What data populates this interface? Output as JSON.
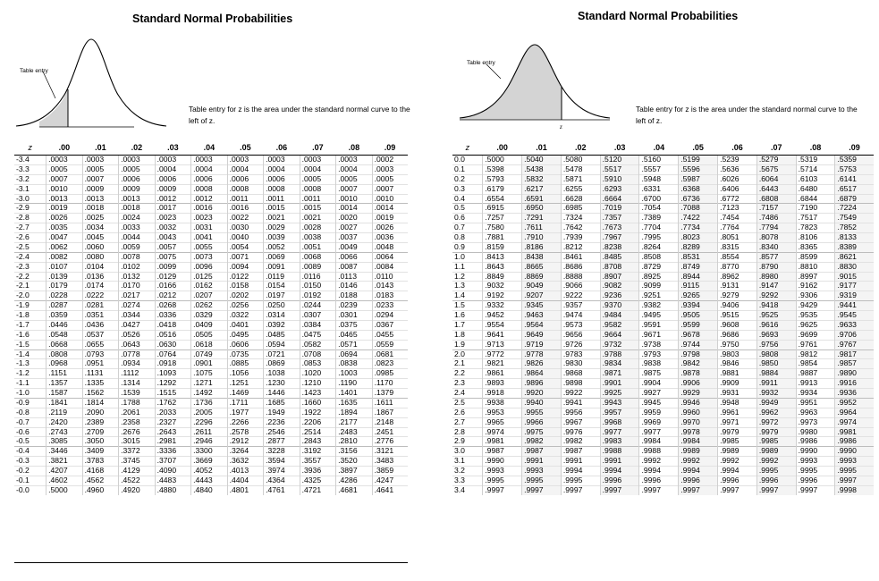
{
  "left": {
    "title": "Standard Normal Probabilities",
    "table_entry_label": "Table entry",
    "z_label": "z",
    "caption": "Table entry for z is the area under the standard normal curve to the left of z.",
    "headers": [
      "z",
      ".00",
      ".01",
      ".02",
      ".03",
      ".04",
      ".05",
      ".06",
      ".07",
      ".08",
      ".09"
    ],
    "rows": [
      [
        "-3.4",
        ".0003",
        ".0003",
        ".0003",
        ".0003",
        ".0003",
        ".0003",
        ".0003",
        ".0003",
        ".0003",
        ".0002"
      ],
      [
        "-3.3",
        ".0005",
        ".0005",
        ".0005",
        ".0004",
        ".0004",
        ".0004",
        ".0004",
        ".0004",
        ".0004",
        ".0003"
      ],
      [
        "-3.2",
        ".0007",
        ".0007",
        ".0006",
        ".0006",
        ".0006",
        ".0006",
        ".0006",
        ".0005",
        ".0005",
        ".0005"
      ],
      [
        "-3.1",
        ".0010",
        ".0009",
        ".0009",
        ".0009",
        ".0008",
        ".0008",
        ".0008",
        ".0008",
        ".0007",
        ".0007"
      ],
      [
        "-3.0",
        ".0013",
        ".0013",
        ".0013",
        ".0012",
        ".0012",
        ".0011",
        ".0011",
        ".0011",
        ".0010",
        ".0010"
      ],
      [
        "-2.9",
        ".0019",
        ".0018",
        ".0018",
        ".0017",
        ".0016",
        ".0016",
        ".0015",
        ".0015",
        ".0014",
        ".0014"
      ],
      [
        "-2.8",
        ".0026",
        ".0025",
        ".0024",
        ".0023",
        ".0023",
        ".0022",
        ".0021",
        ".0021",
        ".0020",
        ".0019"
      ],
      [
        "-2.7",
        ".0035",
        ".0034",
        ".0033",
        ".0032",
        ".0031",
        ".0030",
        ".0029",
        ".0028",
        ".0027",
        ".0026"
      ],
      [
        "-2.6",
        ".0047",
        ".0045",
        ".0044",
        ".0043",
        ".0041",
        ".0040",
        ".0039",
        ".0038",
        ".0037",
        ".0036"
      ],
      [
        "-2.5",
        ".0062",
        ".0060",
        ".0059",
        ".0057",
        ".0055",
        ".0054",
        ".0052",
        ".0051",
        ".0049",
        ".0048"
      ],
      [
        "-2.4",
        ".0082",
        ".0080",
        ".0078",
        ".0075",
        ".0073",
        ".0071",
        ".0069",
        ".0068",
        ".0066",
        ".0064"
      ],
      [
        "-2.3",
        ".0107",
        ".0104",
        ".0102",
        ".0099",
        ".0096",
        ".0094",
        ".0091",
        ".0089",
        ".0087",
        ".0084"
      ],
      [
        "-2.2",
        ".0139",
        ".0136",
        ".0132",
        ".0129",
        ".0125",
        ".0122",
        ".0119",
        ".0116",
        ".0113",
        ".0110"
      ],
      [
        "-2.1",
        ".0179",
        ".0174",
        ".0170",
        ".0166",
        ".0162",
        ".0158",
        ".0154",
        ".0150",
        ".0146",
        ".0143"
      ],
      [
        "-2.0",
        ".0228",
        ".0222",
        ".0217",
        ".0212",
        ".0207",
        ".0202",
        ".0197",
        ".0192",
        ".0188",
        ".0183"
      ],
      [
        "-1.9",
        ".0287",
        ".0281",
        ".0274",
        ".0268",
        ".0262",
        ".0256",
        ".0250",
        ".0244",
        ".0239",
        ".0233"
      ],
      [
        "-1.8",
        ".0359",
        ".0351",
        ".0344",
        ".0336",
        ".0329",
        ".0322",
        ".0314",
        ".0307",
        ".0301",
        ".0294"
      ],
      [
        "-1.7",
        ".0446",
        ".0436",
        ".0427",
        ".0418",
        ".0409",
        ".0401",
        ".0392",
        ".0384",
        ".0375",
        ".0367"
      ],
      [
        "-1.6",
        ".0548",
        ".0537",
        ".0526",
        ".0516",
        ".0505",
        ".0495",
        ".0485",
        ".0475",
        ".0465",
        ".0455"
      ],
      [
        "-1.5",
        ".0668",
        ".0655",
        ".0643",
        ".0630",
        ".0618",
        ".0606",
        ".0594",
        ".0582",
        ".0571",
        ".0559"
      ],
      [
        "-1.4",
        ".0808",
        ".0793",
        ".0778",
        ".0764",
        ".0749",
        ".0735",
        ".0721",
        ".0708",
        ".0694",
        ".0681"
      ],
      [
        "-1.3",
        ".0968",
        ".0951",
        ".0934",
        ".0918",
        ".0901",
        ".0885",
        ".0869",
        ".0853",
        ".0838",
        ".0823"
      ],
      [
        "-1.2",
        ".1151",
        ".1131",
        ".1112",
        ".1093",
        ".1075",
        ".1056",
        ".1038",
        ".1020",
        ".1003",
        ".0985"
      ],
      [
        "-1.1",
        ".1357",
        ".1335",
        ".1314",
        ".1292",
        ".1271",
        ".1251",
        ".1230",
        ".1210",
        ".1190",
        ".1170"
      ],
      [
        "-1.0",
        ".1587",
        ".1562",
        ".1539",
        ".1515",
        ".1492",
        ".1469",
        ".1446",
        ".1423",
        ".1401",
        ".1379"
      ],
      [
        "-0.9",
        ".1841",
        ".1814",
        ".1788",
        ".1762",
        ".1736",
        ".1711",
        ".1685",
        ".1660",
        ".1635",
        ".1611"
      ],
      [
        "-0.8",
        ".2119",
        ".2090",
        ".2061",
        ".2033",
        ".2005",
        ".1977",
        ".1949",
        ".1922",
        ".1894",
        ".1867"
      ],
      [
        "-0.7",
        ".2420",
        ".2389",
        ".2358",
        ".2327",
        ".2296",
        ".2266",
        ".2236",
        ".2206",
        ".2177",
        ".2148"
      ],
      [
        "-0.6",
        ".2743",
        ".2709",
        ".2676",
        ".2643",
        ".2611",
        ".2578",
        ".2546",
        ".2514",
        ".2483",
        ".2451"
      ],
      [
        "-0.5",
        ".3085",
        ".3050",
        ".3015",
        ".2981",
        ".2946",
        ".2912",
        ".2877",
        ".2843",
        ".2810",
        ".2776"
      ],
      [
        "-0.4",
        ".3446",
        ".3409",
        ".3372",
        ".3336",
        ".3300",
        ".3264",
        ".3228",
        ".3192",
        ".3156",
        ".3121"
      ],
      [
        "-0.3",
        ".3821",
        ".3783",
        ".3745",
        ".3707",
        ".3669",
        ".3632",
        ".3594",
        ".3557",
        ".3520",
        ".3483"
      ],
      [
        "-0.2",
        ".4207",
        ".4168",
        ".4129",
        ".4090",
        ".4052",
        ".4013",
        ".3974",
        ".3936",
        ".3897",
        ".3859"
      ],
      [
        "-0.1",
        ".4602",
        ".4562",
        ".4522",
        ".4483",
        ".4443",
        ".4404",
        ".4364",
        ".4325",
        ".4286",
        ".4247"
      ],
      [
        "-0.0",
        ".5000",
        ".4960",
        ".4920",
        ".4880",
        ".4840",
        ".4801",
        ".4761",
        ".4721",
        ".4681",
        ".4641"
      ]
    ]
  },
  "right": {
    "title": "Standard Normal Probabilities",
    "table_entry_label": "Table entry",
    "z_label": "z",
    "caption": "Table entry for z is the area under the standard normal curve to the left of z.",
    "headers": [
      "z",
      ".00",
      ".01",
      ".02",
      ".03",
      ".04",
      ".05",
      ".06",
      ".07",
      ".08",
      ".09"
    ],
    "rows": [
      [
        "0.0",
        ".5000",
        ".5040",
        ".5080",
        ".5120",
        ".5160",
        ".5199",
        ".5239",
        ".5279",
        ".5319",
        ".5359"
      ],
      [
        "0.1",
        ".5398",
        ".5438",
        ".5478",
        ".5517",
        ".5557",
        ".5596",
        ".5636",
        ".5675",
        ".5714",
        ".5753"
      ],
      [
        "0.2",
        ".5793",
        ".5832",
        ".5871",
        ".5910",
        ".5948",
        ".5987",
        ".6026",
        ".6064",
        ".6103",
        ".6141"
      ],
      [
        "0.3",
        ".6179",
        ".6217",
        ".6255",
        ".6293",
        ".6331",
        ".6368",
        ".6406",
        ".6443",
        ".6480",
        ".6517"
      ],
      [
        "0.4",
        ".6554",
        ".6591",
        ".6628",
        ".6664",
        ".6700",
        ".6736",
        ".6772",
        ".6808",
        ".6844",
        ".6879"
      ],
      [
        "0.5",
        ".6915",
        ".6950",
        ".6985",
        ".7019",
        ".7054",
        ".7088",
        ".7123",
        ".7157",
        ".7190",
        ".7224"
      ],
      [
        "0.6",
        ".7257",
        ".7291",
        ".7324",
        ".7357",
        ".7389",
        ".7422",
        ".7454",
        ".7486",
        ".7517",
        ".7549"
      ],
      [
        "0.7",
        ".7580",
        ".7611",
        ".7642",
        ".7673",
        ".7704",
        ".7734",
        ".7764",
        ".7794",
        ".7823",
        ".7852"
      ],
      [
        "0.8",
        ".7881",
        ".7910",
        ".7939",
        ".7967",
        ".7995",
        ".8023",
        ".8051",
        ".8078",
        ".8106",
        ".8133"
      ],
      [
        "0.9",
        ".8159",
        ".8186",
        ".8212",
        ".8238",
        ".8264",
        ".8289",
        ".8315",
        ".8340",
        ".8365",
        ".8389"
      ],
      [
        "1.0",
        ".8413",
        ".8438",
        ".8461",
        ".8485",
        ".8508",
        ".8531",
        ".8554",
        ".8577",
        ".8599",
        ".8621"
      ],
      [
        "1.1",
        ".8643",
        ".8665",
        ".8686",
        ".8708",
        ".8729",
        ".8749",
        ".8770",
        ".8790",
        ".8810",
        ".8830"
      ],
      [
        "1.2",
        ".8849",
        ".8869",
        ".8888",
        ".8907",
        ".8925",
        ".8944",
        ".8962",
        ".8980",
        ".8997",
        ".9015"
      ],
      [
        "1.3",
        ".9032",
        ".9049",
        ".9066",
        ".9082",
        ".9099",
        ".9115",
        ".9131",
        ".9147",
        ".9162",
        ".9177"
      ],
      [
        "1.4",
        ".9192",
        ".9207",
        ".9222",
        ".9236",
        ".9251",
        ".9265",
        ".9279",
        ".9292",
        ".9306",
        ".9319"
      ],
      [
        "1.5",
        ".9332",
        ".9345",
        ".9357",
        ".9370",
        ".9382",
        ".9394",
        ".9406",
        ".9418",
        ".9429",
        ".9441"
      ],
      [
        "1.6",
        ".9452",
        ".9463",
        ".9474",
        ".9484",
        ".9495",
        ".9505",
        ".9515",
        ".9525",
        ".9535",
        ".9545"
      ],
      [
        "1.7",
        ".9554",
        ".9564",
        ".9573",
        ".9582",
        ".9591",
        ".9599",
        ".9608",
        ".9616",
        ".9625",
        ".9633"
      ],
      [
        "1.8",
        ".9641",
        ".9649",
        ".9656",
        ".9664",
        ".9671",
        ".9678",
        ".9686",
        ".9693",
        ".9699",
        ".9706"
      ],
      [
        "1.9",
        ".9713",
        ".9719",
        ".9726",
        ".9732",
        ".9738",
        ".9744",
        ".9750",
        ".9756",
        ".9761",
        ".9767"
      ],
      [
        "2.0",
        ".9772",
        ".9778",
        ".9783",
        ".9788",
        ".9793",
        ".9798",
        ".9803",
        ".9808",
        ".9812",
        ".9817"
      ],
      [
        "2.1",
        ".9821",
        ".9826",
        ".9830",
        ".9834",
        ".9838",
        ".9842",
        ".9846",
        ".9850",
        ".9854",
        ".9857"
      ],
      [
        "2.2",
        ".9861",
        ".9864",
        ".9868",
        ".9871",
        ".9875",
        ".9878",
        ".9881",
        ".9884",
        ".9887",
        ".9890"
      ],
      [
        "2.3",
        ".9893",
        ".9896",
        ".9898",
        ".9901",
        ".9904",
        ".9906",
        ".9909",
        ".9911",
        ".9913",
        ".9916"
      ],
      [
        "2.4",
        ".9918",
        ".9920",
        ".9922",
        ".9925",
        ".9927",
        ".9929",
        ".9931",
        ".9932",
        ".9934",
        ".9936"
      ],
      [
        "2.5",
        ".9938",
        ".9940",
        ".9941",
        ".9943",
        ".9945",
        ".9946",
        ".9948",
        ".9949",
        ".9951",
        ".9952"
      ],
      [
        "2.6",
        ".9953",
        ".9955",
        ".9956",
        ".9957",
        ".9959",
        ".9960",
        ".9961",
        ".9962",
        ".9963",
        ".9964"
      ],
      [
        "2.7",
        ".9965",
        ".9966",
        ".9967",
        ".9968",
        ".9969",
        ".9970",
        ".9971",
        ".9972",
        ".9973",
        ".9974"
      ],
      [
        "2.8",
        ".9974",
        ".9975",
        ".9976",
        ".9977",
        ".9977",
        ".9978",
        ".9979",
        ".9979",
        ".9980",
        ".9981"
      ],
      [
        "2.9",
        ".9981",
        ".9982",
        ".9982",
        ".9983",
        ".9984",
        ".9984",
        ".9985",
        ".9985",
        ".9986",
        ".9986"
      ],
      [
        "3.0",
        ".9987",
        ".9987",
        ".9987",
        ".9988",
        ".9988",
        ".9989",
        ".9989",
        ".9989",
        ".9990",
        ".9990"
      ],
      [
        "3.1",
        ".9990",
        ".9991",
        ".9991",
        ".9991",
        ".9992",
        ".9992",
        ".9992",
        ".9992",
        ".9993",
        ".9993"
      ],
      [
        "3.2",
        ".9993",
        ".9993",
        ".9994",
        ".9994",
        ".9994",
        ".9994",
        ".9994",
        ".9995",
        ".9995",
        ".9995"
      ],
      [
        "3.3",
        ".9995",
        ".9995",
        ".9995",
        ".9996",
        ".9996",
        ".9996",
        ".9996",
        ".9996",
        ".9996",
        ".9997"
      ],
      [
        "3.4",
        ".9997",
        ".9997",
        ".9997",
        ".9997",
        ".9997",
        ".9997",
        ".9997",
        ".9997",
        ".9997",
        ".9998"
      ]
    ]
  },
  "colors": {
    "shaded_area": "#d4d4d4",
    "curve": "#000000"
  }
}
